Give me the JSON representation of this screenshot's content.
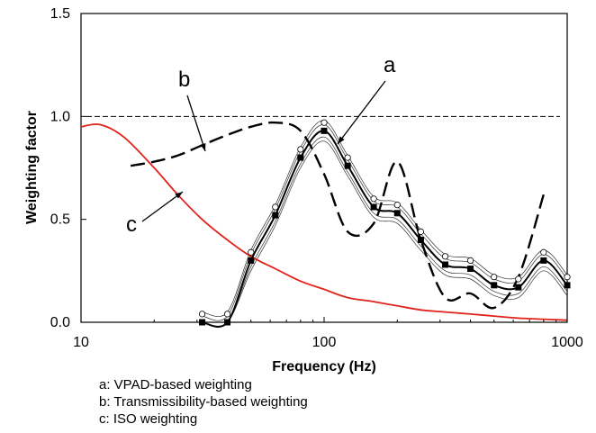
{
  "chart_data": {
    "type": "line",
    "xlabel": "Frequency (Hz)",
    "ylabel": "Weighting factor",
    "xscale": "log",
    "xlim": [
      10,
      1000
    ],
    "ylim": [
      0,
      1.5
    ],
    "x_ticks": [
      "10",
      "100",
      "1000"
    ],
    "y_ticks": [
      "0.0",
      "0.5",
      "1.0",
      "1.5"
    ],
    "reference_line": {
      "y": 1.0,
      "style": "dashed-thin"
    },
    "annotations": [
      "a",
      "b",
      "c"
    ],
    "legend": [
      "a: VPAD-based weighting",
      "b: Transmissibility-based weighting",
      "c: ISO weighting"
    ],
    "series": [
      {
        "name": "a",
        "color": "#000000",
        "style": "solid",
        "x": [
          31.5,
          40,
          50,
          63,
          80,
          100,
          125,
          160,
          200,
          250,
          315,
          400,
          500,
          630,
          800,
          1000
        ],
        "y": [
          0.0,
          0.0,
          0.3,
          0.52,
          0.8,
          0.93,
          0.76,
          0.56,
          0.53,
          0.4,
          0.28,
          0.26,
          0.18,
          0.17,
          0.3,
          0.18
        ]
      },
      {
        "name": "b",
        "color": "#000000",
        "style": "dashed-thick",
        "x": [
          16,
          20,
          25,
          31.5,
          40,
          50,
          63,
          80,
          100,
          125,
          160,
          200,
          250,
          315,
          400,
          500,
          630,
          800
        ],
        "y": [
          0.76,
          0.78,
          0.81,
          0.86,
          0.91,
          0.95,
          0.97,
          0.93,
          0.72,
          0.44,
          0.48,
          0.78,
          0.4,
          0.12,
          0.14,
          0.07,
          0.22,
          0.62
        ]
      },
      {
        "name": "c",
        "color": "#e0231b",
        "style": "solid",
        "x": [
          10,
          12,
          15,
          20,
          25,
          31.5,
          40,
          50,
          63,
          80,
          100,
          125,
          160,
          200,
          250,
          315,
          400,
          500,
          630,
          800,
          1000
        ],
        "y": [
          0.95,
          0.96,
          0.9,
          0.75,
          0.62,
          0.5,
          0.4,
          0.32,
          0.26,
          0.2,
          0.16,
          0.12,
          0.1,
          0.08,
          0.06,
          0.05,
          0.04,
          0.03,
          0.02,
          0.015,
          0.01
        ]
      }
    ],
    "grid": false
  }
}
